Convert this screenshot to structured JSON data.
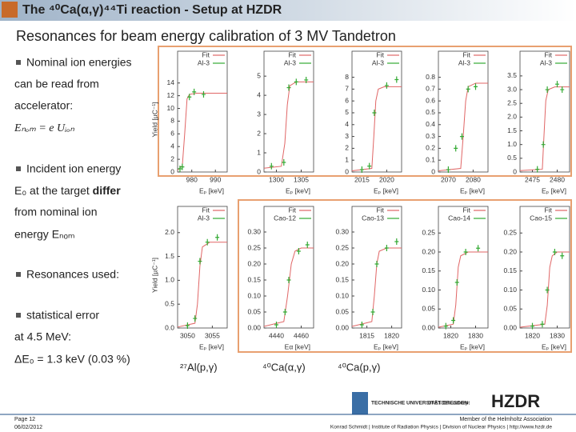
{
  "header": {
    "title": "The ⁴⁰Ca(α,γ)⁴⁴Ti reaction - Setup  at HZDR",
    "subtitle": "Resonances for beam energy calibration of 3 MV Tandetron"
  },
  "bullets": {
    "lines": [
      "Nominal ion energies",
      "can be read from",
      "accelerator:",
      "Eₙₒₘ = e Uᵢₒₙ",
      "Incident ion energy",
      "E₀ at the target ",
      "differ",
      "from nominal ion",
      "energy Eₙₒₘ",
      "Resonances used:",
      "statistical error",
      "at 4.5 MeV:",
      "ΔE₀ = 1.3 keV (0.03 %)"
    ]
  },
  "reactions": [
    "²⁷Al(p,γ)",
    "⁴⁰Ca(α,γ)",
    "⁴⁰Ca(p,γ)"
  ],
  "footer": {
    "page": "Page 12",
    "date": "06/02/2012",
    "member": "Member of the Helmholtz Association",
    "credit": "Konrad Schmidt | Institute of Radiation Physics | Division of Nuclear Physics | http://www.hzdr.de",
    "tu": "TECHNISCHE UNIVERSITÄT DRESDEN",
    "concept": "DRESDEN concept",
    "hzdr": "HZDR"
  },
  "chart_data": [
    {
      "type": "line",
      "ylabel": "Yield [µC⁻¹]",
      "xlabel": "Eₚ [keV]",
      "xlim": [
        974,
        995
      ],
      "ylim": [
        0,
        19
      ],
      "xticks": [
        980,
        990
      ],
      "yticks": [
        0,
        2,
        4,
        6,
        8,
        10,
        12,
        14
      ],
      "series": [
        {
          "name": "Fit",
          "color": "#e06666",
          "x": [
            974,
            976,
            977,
            978,
            979,
            982,
            995
          ],
          "values": [
            0.3,
            1,
            6,
            11.5,
            12.2,
            12.4,
            12.4
          ]
        },
        {
          "name": "Al-3",
          "color": "#33aa33",
          "x": [
            975,
            976,
            979,
            981,
            985
          ],
          "values": [
            0.5,
            0.8,
            11.8,
            12.6,
            12.2
          ]
        }
      ]
    },
    {
      "type": "line",
      "xlabel": "Eₚ [keV]",
      "xlim": [
        1297.5,
        1307.5
      ],
      "ylim": [
        0,
        6.3
      ],
      "xticks": [
        1300,
        1305
      ],
      "yticks": [
        0,
        1,
        2,
        3,
        4,
        5
      ],
      "series": [
        {
          "name": "Fit",
          "color": "#e06666",
          "x": [
            1297.5,
            1301,
            1301.7,
            1302.2,
            1302.7,
            1304,
            1307.5
          ],
          "values": [
            0.2,
            0.3,
            1.5,
            3.5,
            4.5,
            4.7,
            4.7
          ]
        },
        {
          "name": "Al-3",
          "color": "#33aa33",
          "x": [
            1299,
            1301.5,
            1302.5,
            1304,
            1306
          ],
          "values": [
            0.3,
            0.5,
            4.4,
            4.7,
            4.8
          ]
        }
      ]
    },
    {
      "type": "line",
      "xlabel": "Eₚ [keV]",
      "xlim": [
        2013,
        2023
      ],
      "ylim": [
        0,
        10.2
      ],
      "xticks": [
        2015,
        2020
      ],
      "yticks": [
        0,
        1,
        2,
        3,
        4,
        5,
        6,
        7,
        8
      ],
      "series": [
        {
          "name": "Fit",
          "color": "#e06666",
          "x": [
            2013,
            2017,
            2017.4,
            2017.8,
            2018.3,
            2019.5,
            2023
          ],
          "values": [
            0.1,
            0.3,
            3,
            6,
            7,
            7.2,
            7.2
          ]
        },
        {
          "name": "Al-3",
          "color": "#33aa33",
          "x": [
            2015,
            2016.5,
            2017.5,
            2020,
            2022
          ],
          "values": [
            0.2,
            0.5,
            5,
            7.3,
            7.8
          ]
        }
      ]
    },
    {
      "type": "line",
      "xlabel": "Eₚ [keV]",
      "xlim": [
        2066,
        2086
      ],
      "ylim": [
        0,
        1.02
      ],
      "xticks": [
        2070,
        2080
      ],
      "yticks": [
        0,
        0.1,
        0.2,
        0.3,
        0.4,
        0.5,
        0.6,
        0.7,
        0.8
      ],
      "series": [
        {
          "name": "Fit",
          "color": "#e06666",
          "x": [
            2066,
            2075,
            2076,
            2077,
            2078,
            2081,
            2086
          ],
          "values": [
            0.01,
            0.03,
            0.3,
            0.6,
            0.72,
            0.75,
            0.75
          ]
        },
        {
          "name": "Al-3",
          "color": "#33aa33",
          "x": [
            2070,
            2073,
            2075.5,
            2078,
            2081
          ],
          "values": [
            0.02,
            0.2,
            0.3,
            0.7,
            0.72
          ]
        }
      ]
    },
    {
      "type": "line",
      "xlabel": "Eₚ [keV]",
      "xlim": [
        2472.5,
        2482.5
      ],
      "ylim": [
        0,
        4.4
      ],
      "xticks": [
        2475,
        2480
      ],
      "yticks": [
        0,
        0.5,
        {
          "value": 1,
          "label": "1.0"
        },
        1.5,
        {
          "value": 2,
          "label": "2.0"
        },
        2.5,
        {
          "value": 3,
          "label": "3.0"
        },
        3.5
      ],
      "series": [
        {
          "name": "Fit",
          "color": "#e06666",
          "x": [
            2472.5,
            2477,
            2477.3,
            2477.7,
            2478.2,
            2479.5,
            2482.5
          ],
          "values": [
            0.05,
            0.1,
            1.2,
            2.6,
            3.0,
            3.1,
            3.1
          ]
        },
        {
          "name": "Al-3",
          "color": "#33aa33",
          "x": [
            2476,
            2477.2,
            2478,
            2480,
            2481
          ],
          "values": [
            0.1,
            1.0,
            3.0,
            3.2,
            3.0
          ]
        }
      ]
    },
    {
      "type": "line",
      "ylabel": "Yield [µC⁻¹]",
      "xlabel": "Eₚ [keV]",
      "xlim": [
        3048,
        3058
      ],
      "ylim": [
        0,
        2.55
      ],
      "xticks": [
        3050,
        3055
      ],
      "yticks": [
        {
          "value": 0,
          "label": "0.0"
        },
        0.5,
        {
          "value": 1,
          "label": "1.0"
        },
        1.5,
        {
          "value": 2,
          "label": "2.0"
        }
      ],
      "series": [
        {
          "name": "Fit",
          "color": "#e06666",
          "x": [
            3048,
            3051.5,
            3052,
            3052.5,
            3053,
            3054.5,
            3058
          ],
          "values": [
            0.02,
            0.1,
            0.5,
            1.3,
            1.7,
            1.8,
            1.8
          ]
        },
        {
          "name": "Al-3",
          "color": "#33aa33",
          "x": [
            3050,
            3051.5,
            3052.5,
            3054,
            3056
          ],
          "values": [
            0.05,
            0.2,
            1.4,
            1.8,
            1.9
          ]
        }
      ]
    },
    {
      "type": "line",
      "xlabel": "Eα [keV]",
      "xlim": [
        4430,
        4470
      ],
      "ylim": [
        0,
        0.38
      ],
      "xticks": [
        4440,
        4460
      ],
      "yticks": [
        {
          "value": 0,
          "label": "0.00"
        },
        0.05,
        {
          "value": 0.1,
          "label": "0.10"
        },
        0.15,
        {
          "value": 0.2,
          "label": "0.20"
        },
        0.25,
        {
          "value": 0.3,
          "label": "0.30"
        }
      ],
      "series": [
        {
          "name": "Fit",
          "color": "#e06666",
          "x": [
            4430,
            4446,
            4449,
            4452,
            4455,
            4460,
            4470
          ],
          "values": [
            0.005,
            0.02,
            0.1,
            0.2,
            0.24,
            0.25,
            0.25
          ]
        },
        {
          "name": "Cao-12",
          "color": "#33aa33",
          "x": [
            4440,
            4447,
            4450,
            4458,
            4465
          ],
          "values": [
            0.01,
            0.05,
            0.15,
            0.24,
            0.26
          ]
        }
      ]
    },
    {
      "type": "line",
      "xlabel": "Eₚ [keV]",
      "xlim": [
        1812,
        1822
      ],
      "ylim": [
        0,
        0.38
      ],
      "xticks": [
        1815,
        1820
      ],
      "yticks": [
        {
          "value": 0,
          "label": "0.00"
        },
        0.05,
        {
          "value": 0.1,
          "label": "0.10"
        },
        0.15,
        {
          "value": 0.2,
          "label": "0.20"
        },
        0.25,
        {
          "value": 0.3,
          "label": "0.30"
        }
      ],
      "series": [
        {
          "name": "Fit",
          "color": "#e06666",
          "x": [
            1812,
            1816,
            1816.5,
            1817,
            1817.5,
            1819,
            1822
          ],
          "values": [
            0.005,
            0.02,
            0.1,
            0.2,
            0.24,
            0.25,
            0.25
          ]
        },
        {
          "name": "Cao-13",
          "color": "#33aa33",
          "x": [
            1814,
            1816.2,
            1817,
            1819,
            1821
          ],
          "values": [
            0.01,
            0.05,
            0.2,
            0.25,
            0.27
          ]
        }
      ]
    },
    {
      "type": "line",
      "xlabel": "Eₚ [keV]",
      "xlim": [
        1815,
        1835
      ],
      "ylim": [
        0,
        0.32
      ],
      "xticks": [
        1820,
        1830
      ],
      "yticks": [
        {
          "value": 0,
          "label": "0.00"
        },
        0.05,
        {
          "value": 0.1,
          "label": "0.10"
        },
        0.15,
        {
          "value": 0.2,
          "label": "0.20"
        },
        0.25
      ],
      "series": [
        {
          "name": "Fit",
          "color": "#e06666",
          "x": [
            1815,
            1821,
            1822,
            1823,
            1824,
            1827,
            1835
          ],
          "values": [
            0.002,
            0.01,
            0.06,
            0.16,
            0.19,
            0.2,
            0.2
          ]
        },
        {
          "name": "Cao-14",
          "color": "#33aa33",
          "x": [
            1818,
            1821,
            1822.5,
            1826,
            1831
          ],
          "values": [
            0.005,
            0.02,
            0.12,
            0.2,
            0.21
          ]
        }
      ]
    },
    {
      "type": "line",
      "xlabel": "Eₚ [keV]",
      "xlim": [
        1815,
        1835
      ],
      "ylim": [
        0,
        0.32
      ],
      "xticks": [
        1820,
        1830
      ],
      "yticks": [
        {
          "value": 0,
          "label": "0.00"
        },
        0.05,
        {
          "value": 0.1,
          "label": "0.10"
        },
        0.15,
        {
          "value": 0.2,
          "label": "0.20"
        },
        0.25
      ],
      "series": [
        {
          "name": "Fit",
          "color": "#e06666",
          "x": [
            1815,
            1825,
            1826,
            1827,
            1828,
            1830,
            1835
          ],
          "values": [
            0.002,
            0.01,
            0.06,
            0.16,
            0.19,
            0.2,
            0.2
          ]
        },
        {
          "name": "Cao-15",
          "color": "#33aa33",
          "x": [
            1820,
            1824,
            1826,
            1829,
            1832
          ],
          "values": [
            0.005,
            0.01,
            0.1,
            0.2,
            0.19
          ]
        }
      ]
    }
  ]
}
